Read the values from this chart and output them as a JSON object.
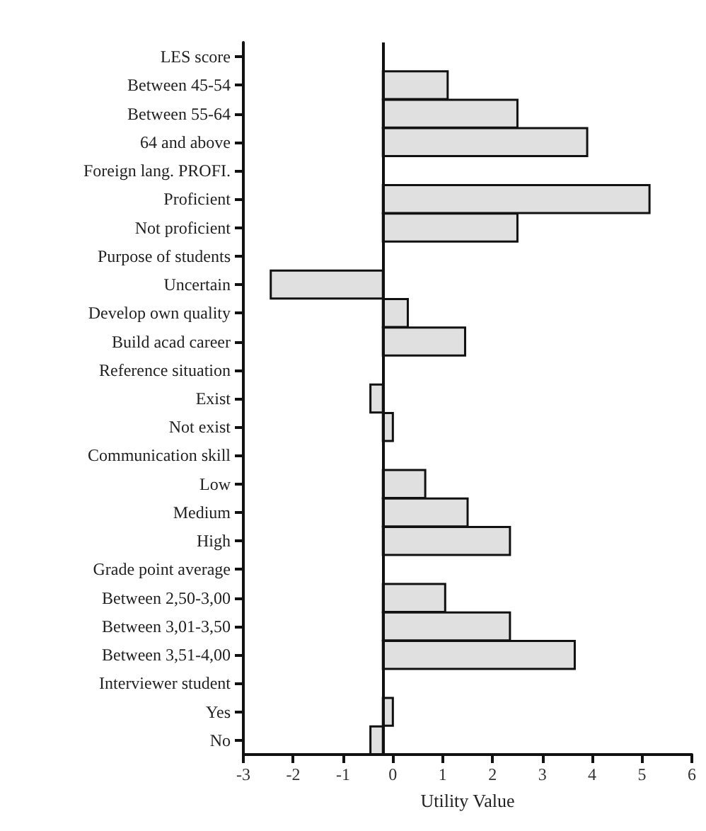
{
  "chart_data": {
    "type": "bar",
    "orientation": "horizontal",
    "xlabel": "Utility Value",
    "categories": [
      "LES score",
      "Between 45-54",
      "Between 55-64",
      "64 and above",
      "Foreign lang. PROFI.",
      "Proficient",
      "Not proficient",
      "Purpose of students",
      "Uncertain",
      "Develop own quality",
      "Build acad career",
      "Reference situation",
      "Exist",
      "Not exist",
      "Communication skill",
      "Low",
      "Medium",
      "High",
      "Grade point average",
      "Between 2,50-3,00",
      "Between 3,01-3,50",
      "Between 3,51-4,00",
      "Interviewer student",
      "Yes",
      "No"
    ],
    "base": [
      null,
      -0.2,
      -0.2,
      -0.2,
      null,
      -0.2,
      -0.2,
      null,
      -0.2,
      -0.2,
      -0.2,
      null,
      -0.2,
      -0.2,
      null,
      -0.2,
      -0.2,
      -0.2,
      null,
      -0.2,
      -0.2,
      -0.2,
      null,
      -0.2,
      -0.2
    ],
    "values": [
      null,
      1.3,
      2.7,
      4.1,
      null,
      5.35,
      2.7,
      null,
      -2.25,
      0.5,
      1.65,
      null,
      -0.25,
      0.2,
      null,
      0.85,
      1.7,
      2.55,
      null,
      1.25,
      2.55,
      3.85,
      null,
      0.2,
      -0.25
    ],
    "color": "#e0e0e0",
    "ref_lines": [
      {
        "axis": "x",
        "value": -0.2
      }
    ],
    "xlim": [
      -3,
      6
    ],
    "xticks": [
      -3,
      -2,
      -1,
      0,
      1,
      2,
      3,
      4,
      5,
      6
    ]
  }
}
